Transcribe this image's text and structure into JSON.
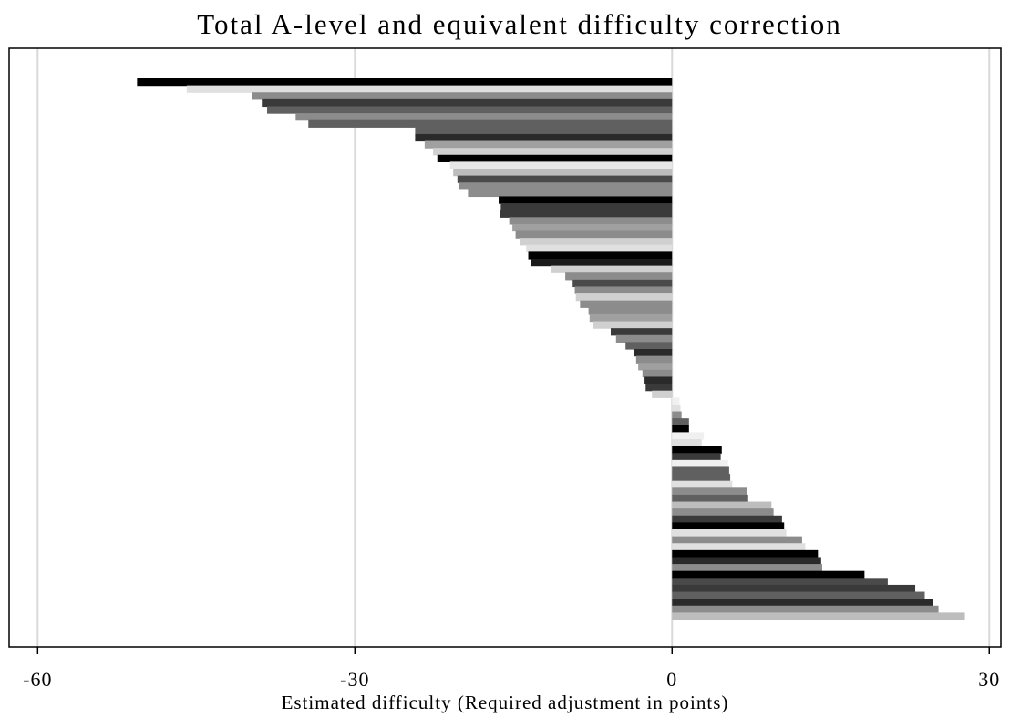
{
  "chart_data": {
    "type": "barh",
    "title": "Total A-level and equivalent difficulty correction",
    "x_label": "Estimated difficulty (Required adjustment in points)",
    "categories": [
      null,
      null,
      null,
      null,
      null,
      null,
      null,
      null,
      null,
      null,
      null,
      null,
      null,
      null,
      null,
      null,
      null,
      null,
      null,
      null,
      null,
      null,
      null,
      null,
      null,
      null,
      null,
      null,
      null,
      null,
      null,
      null,
      null,
      null,
      null,
      null,
      null,
      null,
      null,
      null,
      null,
      null,
      null,
      null,
      null,
      null,
      null,
      null,
      null,
      null,
      null,
      null,
      null,
      null,
      null,
      null,
      null,
      null,
      null,
      null,
      null,
      null,
      null,
      null,
      null,
      null,
      null,
      null,
      null,
      null,
      null,
      null,
      null,
      null,
      null,
      null,
      null,
      null
    ],
    "values": [
      -50.6,
      -45.9,
      -39.7,
      -38.8,
      -38.3,
      -35.6,
      -34.4,
      -24.3,
      -24.3,
      -23.4,
      -22.6,
      -22.2,
      -21.0,
      -20.7,
      -20.3,
      -20.2,
      -19.3,
      -16.4,
      -16.2,
      -16.3,
      -15.4,
      -15.1,
      -14.8,
      -14.4,
      -13.8,
      -13.6,
      -13.3,
      -11.4,
      -10.1,
      -9.4,
      -9.2,
      -9.1,
      -8.7,
      -7.9,
      -7.8,
      -7.5,
      -5.8,
      -5.3,
      -4.4,
      -3.6,
      -3.4,
      -3.2,
      -2.8,
      -2.6,
      -2.5,
      -1.9,
      0.7,
      0.8,
      0.9,
      1.6,
      1.6,
      3.0,
      2.8,
      4.7,
      4.6,
      5.3,
      5.4,
      5.5,
      5.7,
      7.1,
      7.2,
      9.4,
      9.6,
      10.4,
      10.6,
      10.8,
      12.3,
      12.6,
      13.8,
      14.1,
      14.2,
      18.2,
      20.4,
      23.0,
      23.9,
      24.7,
      25.2,
      27.7
    ],
    "colors": [
      "#000000",
      "#e0e0e0",
      "#8c8c8c",
      "#3a3a3a",
      "#606060",
      "#8c8c8c",
      "#606060",
      "#606060",
      "#2a2a2a",
      "#a0a0a0",
      "#d0d0d0",
      "#000000",
      "#e6e6e6",
      "#bdbdbd",
      "#4a4a4a",
      "#8c8c8c",
      "#8c8c8c",
      "#000000",
      "#3a3a3a",
      "#3a3a3a",
      "#8c8c8c",
      "#a0a0a0",
      "#8c8c8c",
      "#d0d0d0",
      "#e0e0e0",
      "#000000",
      "#1a1a1a",
      "#d0d0d0",
      "#8c8c8c",
      "#4a4a4a",
      "#8c8c8c",
      "#d0d0d0",
      "#8c8c8c",
      "#8c8c8c",
      "#a0a0a0",
      "#d0d0d0",
      "#3a3a3a",
      "#8c8c8c",
      "#606060",
      "#2a2a2a",
      "#8c8c8c",
      "#a0a0a0",
      "#8c8c8c",
      "#2a2a2a",
      "#3a3a3a",
      "#d0d0d0",
      "#f0f0f0",
      "#e0e0e0",
      "#8c8c8c",
      "#606060",
      "#000000",
      "#f0f0f0",
      "#e0e0e0",
      "#000000",
      "#3a3a3a",
      "#f0f0f0",
      "#606060",
      "#606060",
      "#e0e0e0",
      "#8c8c8c",
      "#606060",
      "#bdbdbd",
      "#8c8c8c",
      "#3a3a3a",
      "#000000",
      "#e0e0e0",
      "#8c8c8c",
      "#e0e0e0",
      "#000000",
      "#2a2a2a",
      "#8c8c8c",
      "#000000",
      "#4a4a4a",
      "#3a3a3a",
      "#606060",
      "#2a2a2a",
      "#8c8c8c",
      "#bdbdbd"
    ],
    "xlim": [
      -62.7,
      31.1
    ],
    "xticks": [
      -60,
      -30,
      0,
      30
    ],
    "grid": true
  }
}
